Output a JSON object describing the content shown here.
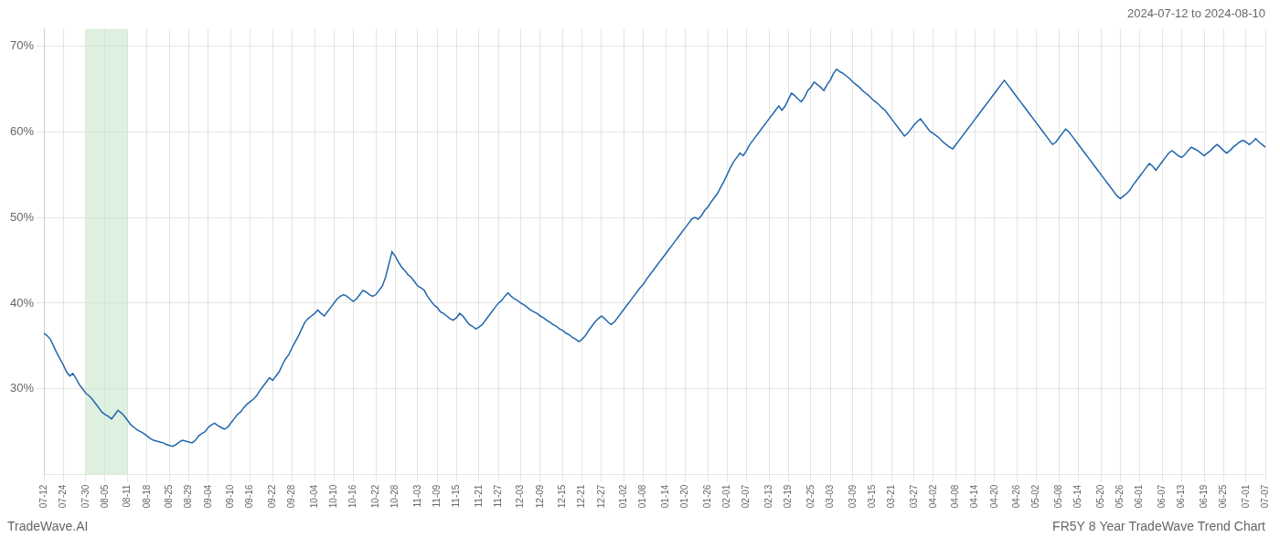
{
  "chart_data": {
    "type": "line",
    "title": "FR5Y 8 Year TradeWave Trend Chart",
    "subtitle": "2024-07-12 to 2024-08-10",
    "annotations": [
      "TradeWave.AI"
    ],
    "color": "#2166ac",
    "grid": true,
    "highlight": {
      "from": "07-30",
      "to": "08-11",
      "color": "#c8e6c9"
    },
    "ylim": [
      20,
      72
    ],
    "yticks": [
      {
        "value": 30,
        "label": "30%"
      },
      {
        "value": 40,
        "label": "40%"
      },
      {
        "value": 50,
        "label": "50%"
      },
      {
        "value": 60,
        "label": "60%"
      },
      {
        "value": 70,
        "label": "70%"
      }
    ],
    "categories": [
      "07-12",
      null,
      null,
      null,
      null,
      null,
      "07-24",
      null,
      null,
      null,
      null,
      null,
      null,
      "07-30",
      null,
      null,
      null,
      null,
      null,
      "08-05",
      null,
      null,
      null,
      null,
      null,
      null,
      "08-11",
      null,
      null,
      null,
      null,
      null,
      "08-18",
      null,
      null,
      null,
      null,
      null,
      null,
      "08-25",
      null,
      null,
      null,
      null,
      null,
      "08-29",
      null,
      null,
      null,
      null,
      null,
      "09-04",
      null,
      null,
      null,
      null,
      null,
      null,
      "09-10",
      null,
      null,
      null,
      null,
      null,
      "09-16",
      null,
      null,
      null,
      null,
      null,
      null,
      "09-22",
      null,
      null,
      null,
      null,
      null,
      "09-28",
      null,
      null,
      null,
      null,
      null,
      null,
      "10-04",
      null,
      null,
      null,
      null,
      null,
      "10-10",
      null,
      null,
      null,
      null,
      null,
      "10-16",
      null,
      null,
      null,
      null,
      null,
      null,
      "10-22",
      null,
      null,
      null,
      null,
      null,
      "10-28",
      null,
      null,
      null,
      null,
      null,
      null,
      "11-03",
      null,
      null,
      null,
      null,
      null,
      "11-09",
      null,
      null,
      null,
      null,
      null,
      "11-15",
      null,
      null,
      null,
      null,
      null,
      null,
      "11-21",
      null,
      null,
      null,
      null,
      null,
      "11-27",
      null,
      null,
      null,
      null,
      null,
      null,
      "12-03",
      null,
      null,
      null,
      null,
      null,
      "12-09",
      null,
      null,
      null,
      null,
      null,
      null,
      "12-15",
      null,
      null,
      null,
      null,
      null,
      "12-21",
      null,
      null,
      null,
      null,
      null,
      "12-27",
      null,
      null,
      null,
      null,
      null,
      null,
      "01-02",
      null,
      null,
      null,
      null,
      null,
      "01-08",
      null,
      null,
      null,
      null,
      null,
      null,
      "01-14",
      null,
      null,
      null,
      null,
      null,
      "01-20",
      null,
      null,
      null,
      null,
      null,
      null,
      "01-26",
      null,
      null,
      null,
      null,
      null,
      "02-01",
      null,
      null,
      null,
      null,
      null,
      "02-07",
      null,
      null,
      null,
      null,
      null,
      null,
      "02-13",
      null,
      null,
      null,
      null,
      null,
      "02-19",
      null,
      null,
      null,
      null,
      null,
      null,
      "02-25",
      null,
      null,
      null,
      null,
      null,
      "03-03",
      null,
      null,
      null,
      null,
      null,
      null,
      "03-09",
      null,
      null,
      null,
      null,
      null,
      "03-15",
      null,
      null,
      null,
      null,
      null,
      "03-21",
      null,
      null,
      null,
      null,
      null,
      null,
      "03-27",
      null,
      null,
      null,
      null,
      null,
      "04-02",
      null,
      null,
      null,
      null,
      null,
      null,
      "04-08",
      null,
      null,
      null,
      null,
      null,
      "04-14",
      null,
      null,
      null,
      null,
      null,
      "04-20",
      null,
      null,
      null,
      null,
      null,
      null,
      "04-26",
      null,
      null,
      null,
      null,
      null,
      "05-02",
      null,
      null,
      null,
      null,
      null,
      null,
      "05-08",
      null,
      null,
      null,
      null,
      null,
      "05-14",
      null,
      null,
      null,
      null,
      null,
      null,
      "05-20",
      null,
      null,
      null,
      null,
      null,
      "05-26",
      null,
      null,
      null,
      null,
      null,
      "06-01",
      null,
      null,
      null,
      null,
      null,
      null,
      "06-07",
      null,
      null,
      null,
      null,
      null,
      "06-13",
      null,
      null,
      null,
      null,
      null,
      null,
      "06-19",
      null,
      null,
      null,
      null,
      null,
      "06-25",
      null,
      null,
      null,
      null,
      null,
      null,
      "07-01",
      null,
      null,
      null,
      null,
      null,
      "07-07"
    ],
    "values": [
      36.5,
      36.2,
      35.8,
      35.0,
      34.2,
      33.5,
      32.8,
      32.0,
      31.5,
      31.8,
      31.2,
      30.5,
      30.0,
      29.5,
      29.2,
      28.8,
      28.3,
      27.8,
      27.3,
      27.0,
      26.8,
      26.5,
      27.0,
      27.5,
      27.2,
      26.8,
      26.3,
      25.8,
      25.5,
      25.2,
      25.0,
      24.8,
      24.5,
      24.2,
      24.0,
      23.9,
      23.8,
      23.7,
      23.5,
      23.4,
      23.3,
      23.5,
      23.8,
      24.0,
      23.9,
      23.8,
      23.7,
      24.0,
      24.5,
      24.8,
      25.0,
      25.5,
      25.8,
      26.0,
      25.7,
      25.5,
      25.3,
      25.5,
      26.0,
      26.5,
      27.0,
      27.3,
      27.8,
      28.2,
      28.5,
      28.8,
      29.2,
      29.8,
      30.3,
      30.8,
      31.3,
      31.0,
      31.5,
      32.0,
      32.8,
      33.5,
      34.0,
      34.8,
      35.5,
      36.2,
      37.0,
      37.8,
      38.2,
      38.5,
      38.8,
      39.2,
      38.8,
      38.5,
      39.0,
      39.5,
      40.0,
      40.5,
      40.8,
      41.0,
      40.8,
      40.5,
      40.2,
      40.5,
      41.0,
      41.5,
      41.3,
      41.0,
      40.8,
      41.0,
      41.5,
      42.0,
      43.0,
      44.5,
      46.0,
      45.5,
      44.8,
      44.2,
      43.8,
      43.3,
      43.0,
      42.5,
      42.0,
      41.8,
      41.5,
      40.8,
      40.3,
      39.8,
      39.5,
      39.0,
      38.8,
      38.5,
      38.2,
      38.0,
      38.3,
      38.8,
      38.5,
      38.0,
      37.5,
      37.3,
      37.0,
      37.2,
      37.5,
      38.0,
      38.5,
      39.0,
      39.5,
      40.0,
      40.3,
      40.8,
      41.2,
      40.8,
      40.5,
      40.3,
      40.0,
      39.8,
      39.5,
      39.2,
      39.0,
      38.8,
      38.5,
      38.3,
      38.0,
      37.8,
      37.5,
      37.3,
      37.0,
      36.8,
      36.5,
      36.3,
      36.0,
      35.8,
      35.5,
      35.8,
      36.2,
      36.8,
      37.3,
      37.8,
      38.2,
      38.5,
      38.2,
      37.8,
      37.5,
      37.8,
      38.3,
      38.8,
      39.3,
      39.8,
      40.3,
      40.8,
      41.3,
      41.8,
      42.2,
      42.8,
      43.3,
      43.8,
      44.3,
      44.8,
      45.3,
      45.8,
      46.3,
      46.8,
      47.3,
      47.8,
      48.3,
      48.8,
      49.3,
      49.8,
      50.0,
      49.8,
      50.2,
      50.8,
      51.2,
      51.8,
      52.3,
      52.8,
      53.5,
      54.2,
      55.0,
      55.8,
      56.5,
      57.0,
      57.5,
      57.2,
      57.8,
      58.5,
      59.0,
      59.5,
      60.0,
      60.5,
      61.0,
      61.5,
      62.0,
      62.5,
      63.0,
      62.5,
      63.0,
      63.8,
      64.5,
      64.2,
      63.8,
      63.5,
      64.0,
      64.8,
      65.2,
      65.8,
      65.5,
      65.2,
      64.8,
      65.5,
      66.0,
      66.8,
      67.3,
      67.0,
      66.8,
      66.5,
      66.2,
      65.8,
      65.5,
      65.2,
      64.8,
      64.5,
      64.2,
      63.8,
      63.5,
      63.2,
      62.8,
      62.5,
      62.0,
      61.5,
      61.0,
      60.5,
      60.0,
      59.5,
      59.8,
      60.3,
      60.8,
      61.2,
      61.5,
      61.0,
      60.5,
      60.0,
      59.8,
      59.5,
      59.2,
      58.8,
      58.5,
      58.2,
      58.0,
      58.5,
      59.0,
      59.5,
      60.0,
      60.5,
      61.0,
      61.5,
      62.0,
      62.5,
      63.0,
      63.5,
      64.0,
      64.5,
      65.0,
      65.5,
      66.0,
      65.5,
      65.0,
      64.5,
      64.0,
      63.5,
      63.0,
      62.5,
      62.0,
      61.5,
      61.0,
      60.5,
      60.0,
      59.5,
      59.0,
      58.5,
      58.8,
      59.3,
      59.8,
      60.3,
      60.0,
      59.5,
      59.0,
      58.5,
      58.0,
      57.5,
      57.0,
      56.5,
      56.0,
      55.5,
      55.0,
      54.5,
      54.0,
      53.5,
      53.0,
      52.5,
      52.2,
      52.5,
      52.8,
      53.2,
      53.8,
      54.3,
      54.8,
      55.3,
      55.8,
      56.3,
      56.0,
      55.5,
      56.0,
      56.5,
      57.0,
      57.5,
      57.8,
      57.5,
      57.2,
      57.0,
      57.3,
      57.8,
      58.2,
      58.0,
      57.8,
      57.5,
      57.2,
      57.5,
      57.8,
      58.2,
      58.5,
      58.2,
      57.8,
      57.5,
      57.8,
      58.2,
      58.5,
      58.8,
      59.0,
      58.8,
      58.5,
      58.8,
      59.2,
      58.8,
      58.5,
      58.2
    ]
  }
}
